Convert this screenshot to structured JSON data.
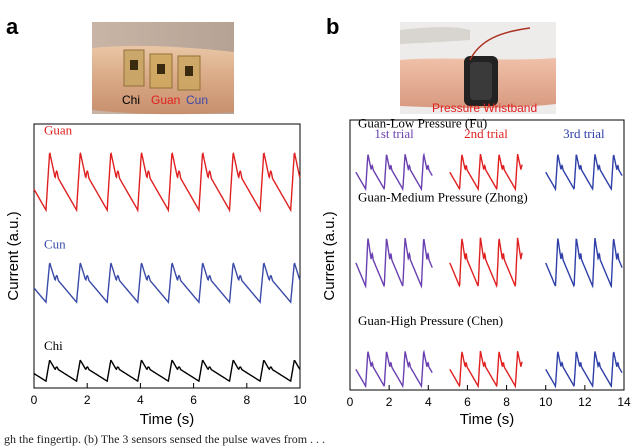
{
  "figure": {
    "panel_a_letter": "a",
    "panel_b_letter": "b",
    "caption_fragment": "gh the fingertip. (b) The 3 sensors sensed the pulse waves from . . ."
  },
  "photo_a": {
    "labels": [
      {
        "text": "Chi",
        "color": "#000000"
      },
      {
        "text": "Guan",
        "color": "#e02020"
      },
      {
        "text": "Cun",
        "color": "#3a4aa8"
      }
    ]
  },
  "photo_b": {
    "label": "Pressure Wristband",
    "label_color": "#e02020"
  },
  "chart_data": [
    {
      "type": "line",
      "panel": "a",
      "xlabel": "Time (s)",
      "ylabel": "Current (a.u.)",
      "xlim": [
        0,
        10
      ],
      "xticks": [
        0,
        2,
        4,
        6,
        8,
        10
      ],
      "y_ticks_shown": false,
      "series": [
        {
          "name": "Guan",
          "color": "#e02020",
          "period_s": 1.15,
          "n_beats": 9,
          "baseline": 0.74,
          "amplitude": 0.22
        },
        {
          "name": "Cun",
          "color": "#3a4aa8",
          "period_s": 1.15,
          "n_beats": 9,
          "baseline": 0.37,
          "amplitude": 0.15
        },
        {
          "name": "Chi",
          "color": "#000000",
          "period_s": 1.15,
          "n_beats": 9,
          "baseline": 0.05,
          "amplitude": 0.08
        }
      ]
    },
    {
      "type": "line",
      "panel": "b",
      "xlabel": "Time (s)",
      "ylabel": "Current (a.u.)",
      "xlim": [
        0,
        14
      ],
      "xticks": [
        0,
        2,
        4,
        6,
        8,
        10,
        12,
        14
      ],
      "y_ticks_shown": false,
      "trials": [
        {
          "label": "1st trial",
          "color": "#6a3fb0",
          "start": 0.3,
          "end": 4.2
        },
        {
          "label": "2nd trial",
          "color": "#e02020",
          "start": 5.1,
          "end": 8.8
        },
        {
          "label": "3rd trial",
          "color": "#2e3fa8",
          "start": 10.0,
          "end": 13.9
        }
      ],
      "series": [
        {
          "name": "Guan-Low Pressure (Fu)",
          "baseline": 0.77,
          "amplitude": 0.13,
          "period_s": 0.95,
          "n_beats_per_trial": 4
        },
        {
          "name": "Guan-Medium Pressure (Zhong)",
          "baseline": 0.42,
          "amplitude": 0.18,
          "period_s": 0.95,
          "n_beats_per_trial": 4
        },
        {
          "name": "Guan-High Pressure (Chen)",
          "baseline": 0.04,
          "amplitude": 0.13,
          "period_s": 0.95,
          "n_beats_per_trial": 4
        }
      ]
    }
  ]
}
